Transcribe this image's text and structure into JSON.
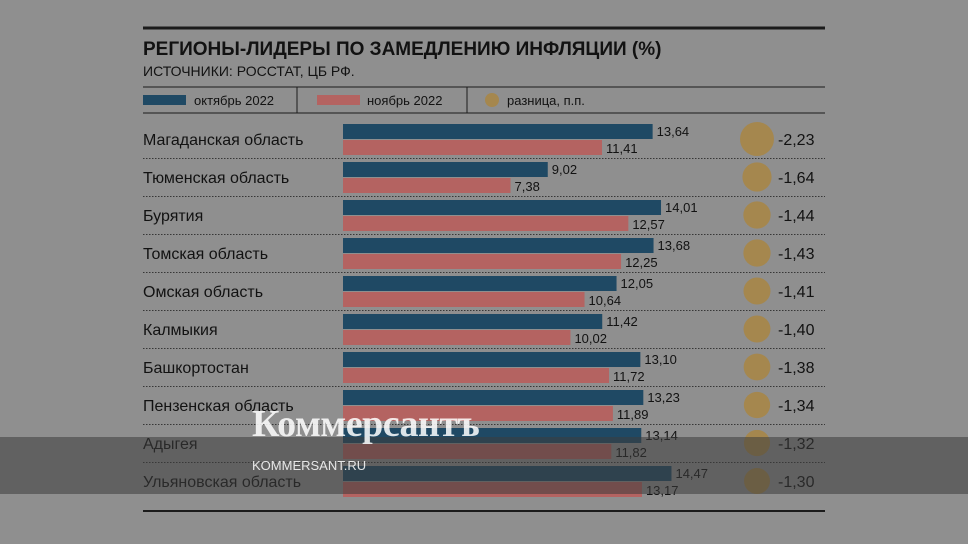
{
  "chart_data": {
    "type": "bar",
    "title": "РЕГИОНЫ-ЛИДЕРЫ ПО ЗАМЕДЛЕНИЮ ИНФЛЯЦИИ (%)",
    "subtitle": "ИСТОЧНИКИ: РОССТАТ, ЦБ РФ.",
    "orientation": "horizontal",
    "categories": [
      "Магаданская область",
      "Тюменская область",
      "Бурятия",
      "Томская область",
      "Омская область",
      "Калмыкия",
      "Башкортостан",
      "Пензенская область",
      "Адыгея",
      "Ульяновская область"
    ],
    "series": [
      {
        "name": "октябрь 2022",
        "color": "#1f4964",
        "values": [
          13.64,
          9.02,
          14.01,
          13.68,
          12.05,
          11.42,
          13.1,
          13.23,
          13.14,
          14.47
        ],
        "labels": [
          "13,64",
          "9,02",
          "14,01",
          "13,68",
          "12,05",
          "11,42",
          "13,10",
          "13,23",
          "13,14",
          "14,47"
        ]
      },
      {
        "name": "ноябрь 2022",
        "color": "#b46361",
        "values": [
          11.41,
          7.38,
          12.57,
          12.25,
          10.64,
          10.02,
          11.72,
          11.89,
          11.82,
          13.17
        ],
        "labels": [
          "11,41",
          "7,38",
          "12,57",
          "12,25",
          "10,64",
          "10,02",
          "11,72",
          "11,89",
          "11,82",
          "13,17"
        ]
      },
      {
        "name": "разница, п.п.",
        "color": "#a5874e",
        "values": [
          -2.23,
          -1.64,
          -1.44,
          -1.43,
          -1.41,
          -1.4,
          -1.38,
          -1.34,
          -1.32,
          -1.3
        ],
        "labels": [
          "-2,23",
          "-1,64",
          "-1,44",
          "-1,43",
          "-1,41",
          "-1,40",
          "-1,38",
          "-1,34",
          "-1,32",
          "-1,30"
        ]
      }
    ],
    "xlim": [
      0,
      16
    ],
    "grid": false,
    "legend": "top"
  },
  "watermark": {
    "logo": "Коммерсантъ",
    "url": "KOMMERSANT.RU"
  },
  "colors": {
    "background": "#8f8f8f",
    "text": "#121212",
    "rule": "#1b1b1b"
  }
}
